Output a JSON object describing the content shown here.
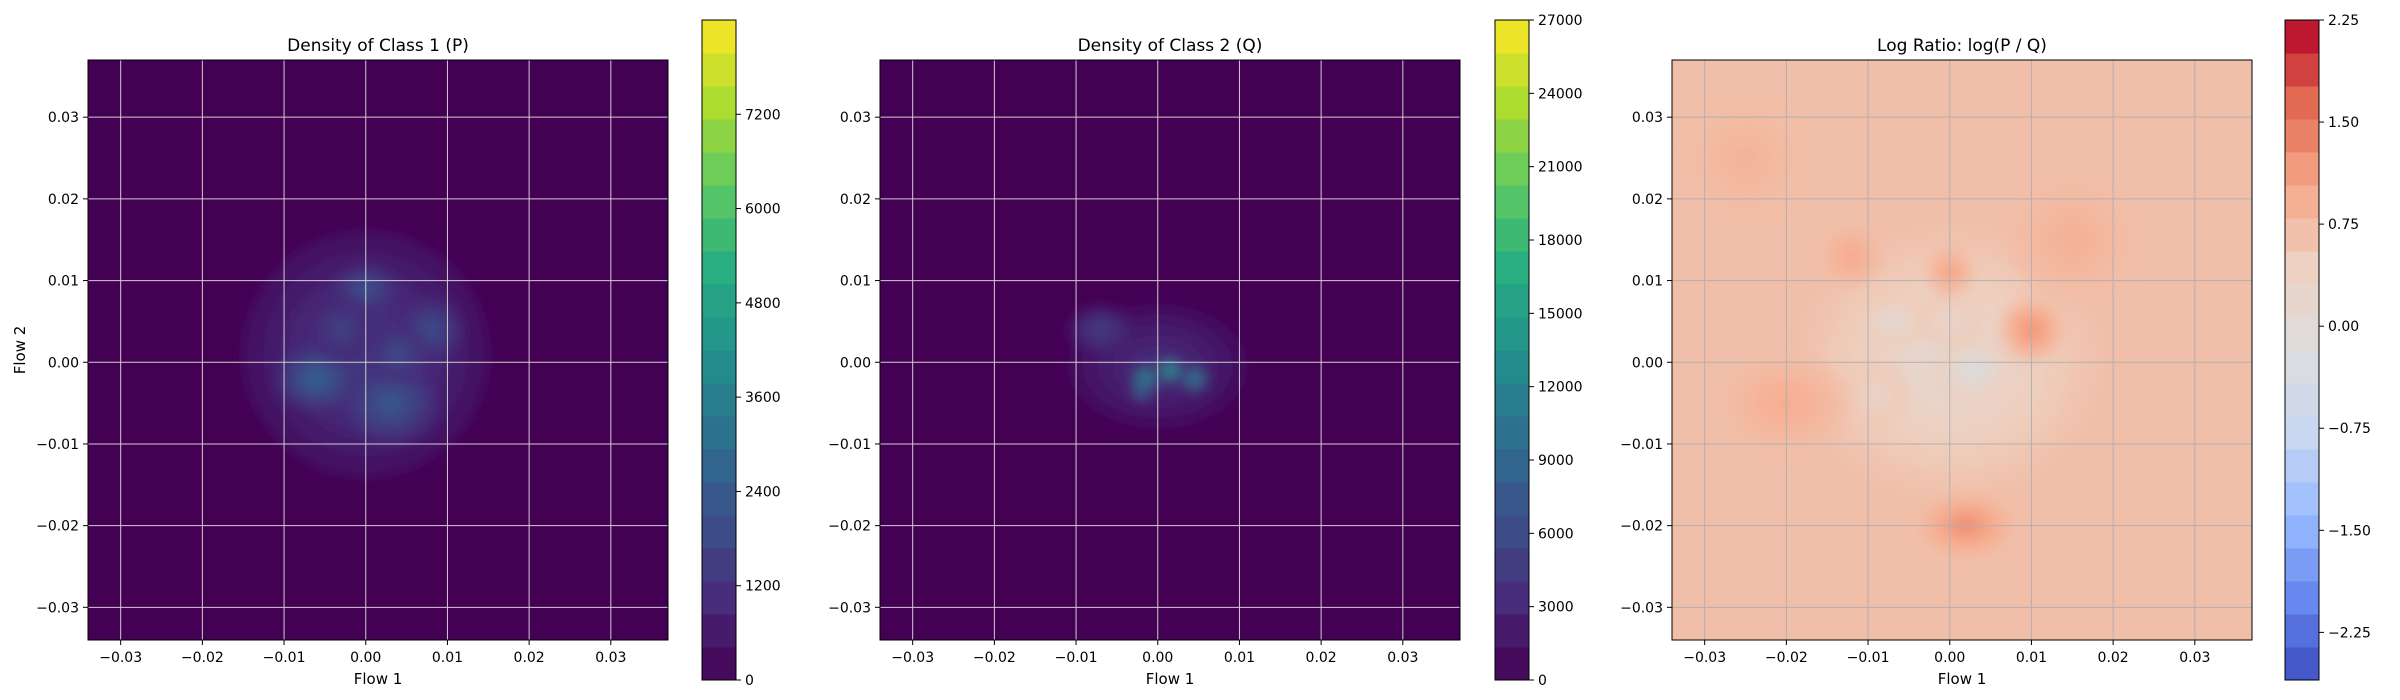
{
  "chart_data": [
    {
      "type": "heatmap",
      "title": "Density of Class 1 (P)",
      "xlabel": "Flow 1",
      "ylabel": "Flow 2",
      "xlim": [
        -0.034,
        0.037
      ],
      "ylim": [
        -0.034,
        0.037
      ],
      "xticks": [
        "−0.03",
        "−0.02",
        "−0.01",
        "0.00",
        "0.01",
        "0.02",
        "0.03"
      ],
      "yticks": [
        "−0.03",
        "−0.02",
        "−0.01",
        "0.00",
        "0.01",
        "0.02",
        "0.03"
      ],
      "grid": true,
      "colormap": "viridis",
      "colorbar": {
        "min": 0,
        "max": 8400,
        "ticks": [
          0,
          1200,
          2400,
          3600,
          4800,
          6000,
          7200
        ],
        "tick_labels": [
          "0",
          "1200",
          "2400",
          "3600",
          "4800",
          "6000",
          "7200"
        ],
        "colors": [
          "#440154",
          "#472d7b",
          "#3b528b",
          "#2c728e",
          "#21918c",
          "#28ae80",
          "#5ec962",
          "#addc30",
          "#fde725"
        ]
      },
      "blobs": [
        {
          "x": 0.0,
          "y": 0.001,
          "sx": 0.0075,
          "sy": 0.0075,
          "v": 0.18
        },
        {
          "x": -0.006,
          "y": -0.002,
          "sx": 0.0025,
          "sy": 0.002,
          "v": 0.34
        },
        {
          "x": 0.003,
          "y": -0.005,
          "sx": 0.003,
          "sy": 0.0025,
          "v": 0.3
        },
        {
          "x": 0.0,
          "y": 0.009,
          "sx": 0.002,
          "sy": 0.0015,
          "v": 0.28
        },
        {
          "x": 0.008,
          "y": 0.004,
          "sx": 0.002,
          "sy": 0.002,
          "v": 0.26
        },
        {
          "x": -0.003,
          "y": 0.004,
          "sx": 0.002,
          "sy": 0.002,
          "v": 0.22
        },
        {
          "x": 0.004,
          "y": 0.001,
          "sx": 0.002,
          "sy": 0.0018,
          "v": 0.25
        }
      ]
    },
    {
      "type": "heatmap",
      "title": "Density of Class 2 (Q)",
      "xlabel": "Flow 1",
      "ylabel": "",
      "xlim": [
        -0.034,
        0.037
      ],
      "ylim": [
        -0.034,
        0.037
      ],
      "xticks": [
        "−0.03",
        "−0.02",
        "−0.01",
        "0.00",
        "0.01",
        "0.02",
        "0.03"
      ],
      "yticks": [
        "−0.03",
        "−0.02",
        "−0.01",
        "0.00",
        "0.01",
        "0.02",
        "0.03"
      ],
      "grid": true,
      "colormap": "viridis",
      "colorbar": {
        "min": 0,
        "max": 27000,
        "ticks": [
          0,
          3000,
          6000,
          9000,
          12000,
          15000,
          18000,
          21000,
          24000,
          27000
        ],
        "tick_labels": [
          "0",
          "3000",
          "6000",
          "9000",
          "12000",
          "15000",
          "18000",
          "21000",
          "24000",
          "27000"
        ],
        "colors": [
          "#440154",
          "#472d7b",
          "#3b528b",
          "#2c728e",
          "#21918c",
          "#28ae80",
          "#5ec962",
          "#addc30",
          "#fde725"
        ]
      },
      "blobs": [
        {
          "x": 0.0,
          "y": -0.0005,
          "sx": 0.0055,
          "sy": 0.0038,
          "v": 0.14
        },
        {
          "x": -0.007,
          "y": 0.004,
          "sx": 0.002,
          "sy": 0.0015,
          "v": 0.2
        },
        {
          "x": -0.0015,
          "y": -0.002,
          "sx": 0.0008,
          "sy": 0.0008,
          "v": 0.55
        },
        {
          "x": 0.0015,
          "y": -0.001,
          "sx": 0.0007,
          "sy": 0.0007,
          "v": 0.65
        },
        {
          "x": 0.0045,
          "y": -0.002,
          "sx": 0.0008,
          "sy": 0.0008,
          "v": 0.5
        },
        {
          "x": -0.002,
          "y": -0.0035,
          "sx": 0.0006,
          "sy": 0.0006,
          "v": 0.45
        }
      ]
    },
    {
      "type": "heatmap",
      "title": "Log Ratio: log(P / Q)",
      "xlabel": "Flow 1",
      "ylabel": "",
      "xlim": [
        -0.034,
        0.037
      ],
      "ylim": [
        -0.034,
        0.037
      ],
      "xticks": [
        "−0.03",
        "−0.02",
        "−0.01",
        "0.00",
        "0.01",
        "0.02",
        "0.03"
      ],
      "yticks": [
        "−0.03",
        "−0.02",
        "−0.01",
        "0.00",
        "0.01",
        "0.02",
        "0.03"
      ],
      "grid": true,
      "colormap": "coolwarm",
      "colorbar": {
        "min": -2.6,
        "max": 2.25,
        "ticks": [
          -2.25,
          -1.5,
          -0.75,
          0.0,
          0.75,
          1.5,
          2.25
        ],
        "tick_labels": [
          "−2.25",
          "−1.50",
          "−0.75",
          "0.00",
          "0.75",
          "1.50",
          "2.25"
        ],
        "colors": [
          "#3b4cc0",
          "#6788ee",
          "#9abbff",
          "#c9d7f0",
          "#dddddd",
          "#edd1c2",
          "#f7a889",
          "#e26952",
          "#b40426"
        ]
      },
      "base_value": 0.7,
      "blobs": [
        {
          "x": 0.0,
          "y": 0.0,
          "sx": 0.009,
          "sy": 0.008,
          "v": -0.8
        },
        {
          "x": -0.007,
          "y": 0.005,
          "sx": 0.0025,
          "sy": 0.0015,
          "v": -0.9
        },
        {
          "x": 0.003,
          "y": -0.001,
          "sx": 0.0025,
          "sy": 0.002,
          "v": -1.3
        },
        {
          "x": 0.0,
          "y": 0.005,
          "sx": 0.002,
          "sy": 0.0015,
          "v": -0.7
        },
        {
          "x": -0.009,
          "y": -0.004,
          "sx": 0.002,
          "sy": 0.002,
          "v": -0.6
        },
        {
          "x": 0.002,
          "y": -0.02,
          "sx": 0.003,
          "sy": 0.002,
          "v": 0.8
        },
        {
          "x": 0.01,
          "y": 0.004,
          "sx": 0.002,
          "sy": 0.002,
          "v": 0.7
        },
        {
          "x": -0.012,
          "y": 0.013,
          "sx": 0.002,
          "sy": 0.002,
          "v": 0.4
        },
        {
          "x": 0.0,
          "y": 0.011,
          "sx": 0.0015,
          "sy": 0.0015,
          "v": 0.5
        },
        {
          "x": -0.02,
          "y": -0.005,
          "sx": 0.004,
          "sy": 0.003,
          "v": 0.35
        },
        {
          "x": 0.015,
          "y": 0.015,
          "sx": 0.004,
          "sy": 0.004,
          "v": 0.25
        },
        {
          "x": -0.025,
          "y": 0.025,
          "sx": 0.004,
          "sy": 0.004,
          "v": 0.2
        }
      ]
    }
  ]
}
